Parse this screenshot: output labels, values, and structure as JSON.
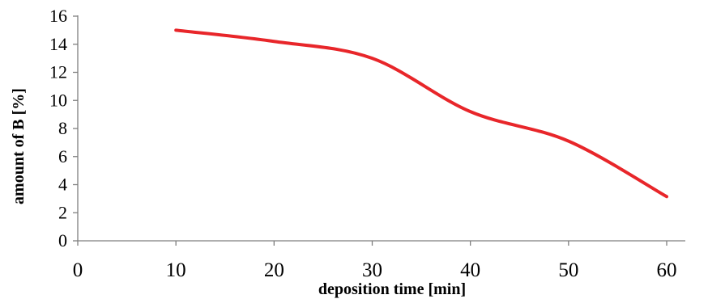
{
  "chart_data": {
    "type": "line",
    "title": "",
    "xlabel": "deposition time [min]",
    "ylabel": "amount of B [%]",
    "xlim": [
      0,
      60
    ],
    "ylim": [
      0,
      16
    ],
    "xticks": [
      0,
      10,
      20,
      30,
      40,
      50,
      60
    ],
    "yticks": [
      0,
      2,
      4,
      6,
      8,
      10,
      12,
      14,
      16
    ],
    "grid": false,
    "legend": "none",
    "smooth": true,
    "series": [
      {
        "color": "#e8262a",
        "x": [
          10,
          20,
          30,
          40,
          50,
          60
        ],
        "y": [
          15.0,
          14.2,
          13.0,
          9.2,
          7.1,
          3.15
        ]
      }
    ]
  }
}
